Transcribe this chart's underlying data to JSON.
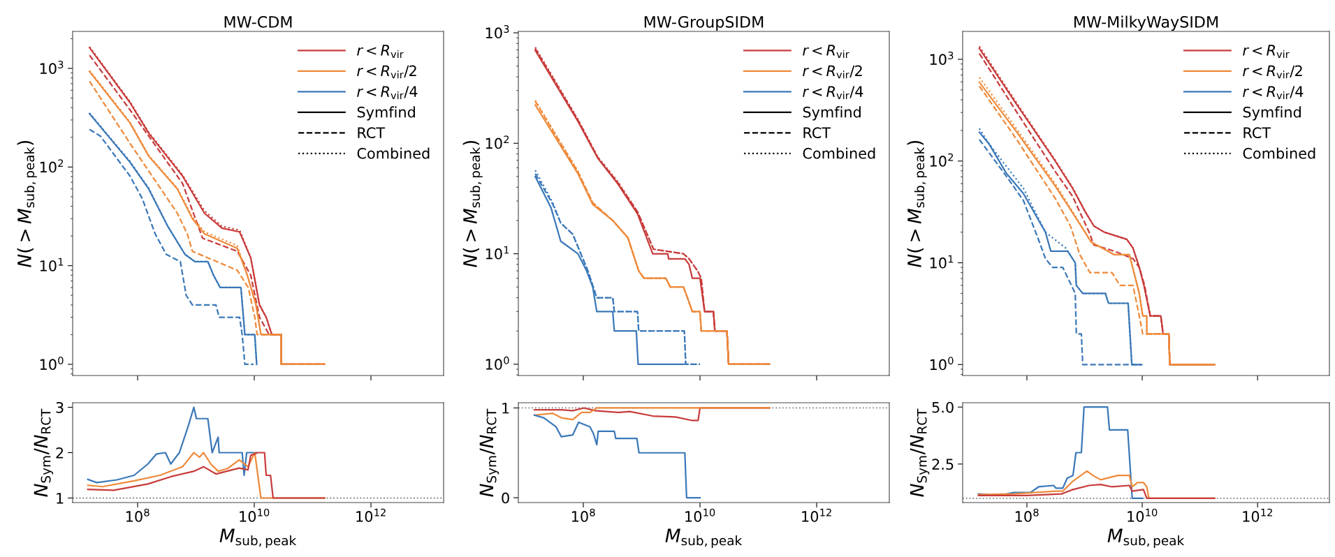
{
  "chart_data": [
    {
      "type": "line",
      "title": "MW-CDM",
      "ylabel": "N(>M$_{sub,peak}$)",
      "log": "xy",
      "legend": "top right",
      "tick_labels": "y",
      "xlim": [
        7700000.0,
        17600000000000.0
      ],
      "ylim": [
        0.77,
        2370
      ],
      "xticks": [
        {
          "value": 100000000.0,
          "label": null
        },
        {
          "value": 10000000000.0,
          "label": null
        },
        {
          "value": 1000000000000.0,
          "label": null
        }
      ],
      "yticks": [
        {
          "value": 1,
          "label": "10$^{0}$"
        },
        {
          "value": 10,
          "label": "10$^{1}$"
        },
        {
          "value": 100,
          "label": "10$^{2}$"
        },
        {
          "value": 1000,
          "label": "10$^{3}$"
        }
      ],
      "series": [
        {
          "name": "r<R$_{vir}$",
          "color": "#c83b3b",
          "line_style": "solid",
          "x": [
            15000000.0,
            74000000.0,
            155000000.0,
            590000000.0,
            1400000000.0,
            2800000000.0,
            5600000000.0,
            8700000000.0,
            12300000000.0,
            16000000000.0,
            20000000000.0,
            29000000000.0,
            29000000000.0,
            160000000000.0
          ],
          "values": [
            1620,
            450,
            220,
            81,
            34,
            24,
            22,
            12,
            4,
            3,
            2,
            2,
            1,
            1
          ]
        },
        {
          "color": "#c83b3b",
          "line_style": "dashed",
          "x": [
            15000000.0,
            74000000.0,
            590000000.0,
            1300000000.0,
            5100000000.0,
            8700000000.0,
            12300000000.0,
            18000000000.0,
            29000000000.0,
            29000000000.0,
            160000000000.0
          ],
          "values": [
            1360,
            380,
            68,
            19,
            14,
            8,
            3,
            2,
            2,
            1,
            1
          ]
        },
        {
          "color": "#c83b3b",
          "line_style": "dotted",
          "x": [
            15000000.0,
            74000000.0,
            155000000.0,
            590000000.0,
            1400000000.0,
            2800000000.0,
            5600000000.0,
            8700000000.0,
            12300000000.0,
            16000000000.0,
            20000000000.0,
            29000000000.0,
            29000000000.0,
            160000000000.0
          ],
          "values": [
            1650,
            460,
            225,
            83,
            36,
            25,
            23,
            12,
            4,
            3,
            2,
            2,
            1,
            1
          ]
        },
        {
          "name": "r<R$_{vir}$/2",
          "color": "#ee8a3a",
          "line_style": "solid",
          "x": [
            15000000.0,
            74000000.0,
            155000000.0,
            480000000.0,
            870000000.0,
            1400000000.0,
            5100000000.0,
            7600000000.0,
            10700000000.0,
            13000000000.0,
            29000000000.0,
            29000000000.0,
            160000000000.0
          ],
          "values": [
            930,
            280,
            129,
            60,
            30,
            21,
            15,
            8,
            4,
            2,
            2,
            1,
            1
          ]
        },
        {
          "color": "#ee8a3a",
          "line_style": "dashed",
          "x": [
            15000000.0,
            74000000.0,
            480000000.0,
            710000000.0,
            870000000.0,
            1600000000.0,
            5100000000.0,
            7900000000.0,
            10200000000.0,
            11200000000.0,
            29000000000.0,
            29000000000.0,
            160000000000.0
          ],
          "values": [
            740,
            174,
            34,
            21,
            14,
            12,
            9,
            6,
            3,
            2,
            2,
            1,
            1
          ]
        },
        {
          "color": "#ee8a3a",
          "line_style": "dotted",
          "x": [
            15000000.0,
            74000000.0,
            155000000.0,
            480000000.0,
            870000000.0,
            1400000000.0,
            5100000000.0,
            7600000000.0,
            10700000000.0,
            13000000000.0,
            29000000000.0,
            29000000000.0,
            160000000000.0
          ],
          "values": [
            950,
            285,
            131,
            61,
            31,
            22,
            16,
            8,
            4,
            2,
            2,
            1,
            1
          ]
        },
        {
          "name": "r<R$_{vir}$/4",
          "color": "#3a78b8",
          "line_style": "solid",
          "x": [
            15000000.0,
            74000000.0,
            155000000.0,
            330000000.0,
            650000000.0,
            960000000.0,
            1600000000.0,
            2000000000.0,
            2600000000.0,
            5900000000.0,
            6900000000.0,
            10200000000.0,
            11000000000.0
          ],
          "values": [
            347,
            112,
            60,
            25,
            13,
            11,
            11,
            8,
            6,
            6,
            2,
            2,
            1
          ]
        },
        {
          "color": "#3a78b8",
          "line_style": "dashed",
          "x": [
            15000000.0,
            23000000.0,
            74000000.0,
            120000000.0,
            200000000.0,
            310000000.0,
            540000000.0,
            680000000.0,
            870000000.0,
            2200000000.0,
            2500000000.0,
            5600000000.0,
            6200000000.0,
            6900000000.0,
            9700000000.0
          ],
          "values": [
            240,
            206,
            81,
            48,
            21,
            13,
            11,
            5,
            4,
            4,
            3,
            3,
            2,
            1,
            1
          ]
        },
        {
          "color": "#3a78b8",
          "line_style": "dotted",
          "x": [
            15000000.0,
            74000000.0,
            155000000.0,
            330000000.0,
            650000000.0,
            960000000.0,
            1600000000.0,
            2000000000.0,
            2600000000.0,
            5900000000.0,
            6900000000.0,
            10200000000.0,
            11000000000.0
          ],
          "values": [
            352,
            114,
            61,
            25,
            13,
            11,
            11,
            8,
            6,
            6,
            2,
            2,
            1
          ]
        },
        {
          "name": "Symfind",
          "color": "#000000",
          "line_style": "solid"
        },
        {
          "name": "RCT",
          "color": "#000000",
          "line_style": "dashed"
        },
        {
          "name": "Combined",
          "color": "#000000",
          "line_style": "dotted"
        }
      ]
    },
    {
      "type": "line",
      "title": "MW-GroupSIDM",
      "ylabel": "N(>M$_{sub,peak}$)",
      "log": "xy",
      "legend": "top right",
      "tick_labels": "y",
      "xlim": [
        7700000.0,
        17600000000000.0
      ],
      "ylim": [
        0.79,
        1030
      ],
      "xticks": [
        {
          "value": 100000000.0,
          "label": null
        },
        {
          "value": 10000000000.0,
          "label": null
        },
        {
          "value": 1000000000000.0,
          "label": null
        }
      ],
      "yticks": [
        {
          "value": 1,
          "label": "10$^{0}$"
        },
        {
          "value": 10,
          "label": "10$^{1}$"
        },
        {
          "value": 100,
          "label": "10$^{2}$"
        },
        {
          "value": 1000,
          "label": "10$^{3}$"
        }
      ],
      "series": [
        {
          "name": "r<R$_{vir}$",
          "color": "#c83b3b",
          "line_style": "solid",
          "x": [
            15000000.0,
            81000000.0,
            178000000.0,
            390000000.0,
            850000000.0,
            1550000000.0,
            2800000000.0,
            2900000000.0,
            5500000000.0,
            6500000000.0,
            7400000000.0,
            10000000000.0,
            12000000000.0,
            17000000000.0,
            18000000000.0,
            29000000000.0,
            31000000000.0,
            155000000000.0
          ],
          "values": [
            695,
            158,
            73,
            43,
            23,
            10,
            10,
            9,
            9,
            8,
            6,
            6,
            3,
            3,
            2,
            2,
            1,
            1
          ]
        },
        {
          "color": "#c83b3b",
          "line_style": "dashed",
          "x": [
            15000000.0,
            81000000.0,
            178000000.0,
            390000000.0,
            850000000.0,
            1600000000.0,
            5200000000.0,
            6500000000.0,
            9100000000.0,
            10500000000.0,
            12000000000.0,
            17000000000.0,
            18000000000.0,
            29000000000.0,
            31000000000.0,
            155000000000.0
          ],
          "values": [
            720,
            162,
            74,
            44,
            24,
            11,
            10,
            9,
            7,
            6,
            3,
            3,
            2,
            2,
            1,
            1
          ]
        },
        {
          "color": "#c83b3b",
          "line_style": "dotted",
          "x": [
            15000000.0,
            81000000.0,
            178000000.0,
            390000000.0,
            850000000.0,
            1600000000.0,
            5200000000.0,
            6500000000.0,
            9100000000.0,
            10500000000.0,
            12000000000.0,
            17000000000.0,
            18000000000.0,
            29000000000.0,
            31000000000.0,
            155000000000.0
          ],
          "values": [
            740,
            165,
            75,
            45,
            24,
            11,
            10,
            9,
            7,
            6,
            3,
            3,
            2,
            2,
            1,
            1
          ]
        },
        {
          "name": "r<R$_{vir}$/2",
          "color": "#ee8a3a",
          "line_style": "solid",
          "x": [
            15000000.0,
            81000000.0,
            145000000.0,
            320000000.0,
            580000000.0,
            890000000.0,
            1100000000.0,
            2600000000.0,
            3100000000.0,
            5200000000.0,
            6100000000.0,
            7400000000.0,
            10000000000.0,
            10500000000.0,
            29000000000.0,
            31000000000.0,
            155000000000.0
          ],
          "values": [
            222,
            53,
            28,
            20,
            14,
            7,
            6,
            6,
            5,
            5,
            4,
            3,
            3,
            2,
            2,
            1,
            1
          ]
        },
        {
          "color": "#ee8a3a",
          "line_style": "dashed",
          "x": [
            15000000.0,
            81000000.0,
            145000000.0,
            320000000.0,
            580000000.0,
            890000000.0,
            1100000000.0,
            2600000000.0,
            3100000000.0,
            5200000000.0,
            6100000000.0,
            7400000000.0,
            10000000000.0,
            10500000000.0,
            29000000000.0,
            31000000000.0,
            155000000000.0
          ],
          "values": [
            240,
            55,
            29,
            20,
            14,
            7,
            6,
            6,
            5,
            5,
            4,
            3,
            3,
            2,
            2,
            1,
            1
          ]
        },
        {
          "color": "#ee8a3a",
          "line_style": "dotted",
          "x": [
            15000000.0,
            81000000.0,
            145000000.0,
            320000000.0,
            580000000.0,
            890000000.0,
            1100000000.0,
            2600000000.0,
            3100000000.0,
            5200000000.0,
            6100000000.0,
            7400000000.0,
            10000000000.0,
            10500000000.0,
            29000000000.0,
            31000000000.0,
            155000000000.0
          ],
          "values": [
            245,
            56,
            29,
            20,
            14,
            7,
            6,
            6,
            5,
            5,
            4,
            3,
            3,
            2,
            2,
            1,
            1
          ]
        },
        {
          "name": "r<R$_{vir}$/4",
          "color": "#3a78b8",
          "line_style": "solid",
          "x": [
            15000000.0,
            28000000.0,
            41000000.0,
            81000000.0,
            114000000.0,
            145000000.0,
            170000000.0,
            320000000.0,
            340000000.0,
            810000000.0,
            870000000.0,
            5400000000.0
          ],
          "values": [
            50,
            26,
            13,
            10,
            7,
            5,
            3,
            3,
            2,
            2,
            1,
            1
          ]
        },
        {
          "color": "#3a78b8",
          "line_style": "dashed",
          "x": [
            15000000.0,
            30000000.0,
            41000000.0,
            66000000.0,
            120000000.0,
            170000000.0,
            320000000.0,
            340000000.0,
            850000000.0,
            890000000.0,
            5400000000.0,
            5700000000.0,
            10000000000.0
          ],
          "values": [
            53,
            28,
            19,
            15,
            7,
            4,
            4,
            3,
            3,
            2,
            2,
            1,
            1
          ]
        },
        {
          "color": "#3a78b8",
          "line_style": "dotted",
          "x": [
            15000000.0,
            30000000.0,
            41000000.0,
            66000000.0,
            120000000.0,
            170000000.0,
            320000000.0,
            340000000.0,
            850000000.0,
            890000000.0,
            5400000000.0,
            5700000000.0,
            10000000000.0
          ],
          "values": [
            57,
            29,
            19,
            15,
            7,
            4,
            4,
            3,
            3,
            2,
            2,
            1,
            1
          ]
        },
        {
          "name": "Symfind",
          "color": "#000000",
          "line_style": "solid"
        },
        {
          "name": "RCT",
          "color": "#000000",
          "line_style": "dashed"
        },
        {
          "name": "Combined",
          "color": "#000000",
          "line_style": "dotted"
        }
      ]
    },
    {
      "type": "line",
      "title": "MW-MilkyWaySIDM",
      "ylabel": "N(>M$_{sub,peak}$)",
      "log": "xy",
      "legend": "top right",
      "tick_labels": "y",
      "xlim": [
        7700000.0,
        17600000000000.0
      ],
      "ylim": [
        0.78,
        1880
      ],
      "xticks": [
        {
          "value": 100000000.0,
          "label": null
        },
        {
          "value": 10000000000.0,
          "label": null
        },
        {
          "value": 1000000000000.0,
          "label": null
        }
      ],
      "yticks": [
        {
          "value": 1,
          "label": "10$^{0}$"
        },
        {
          "value": 10,
          "label": "10$^{1}$"
        },
        {
          "value": 100,
          "label": "10$^{2}$"
        },
        {
          "value": 1000,
          "label": "10$^{3}$"
        }
      ],
      "series": [
        {
          "name": "r<R$_{vir}$",
          "color": "#c83b3b",
          "line_style": "solid",
          "x": [
            15000000.0,
            65000000.0,
            310000000.0,
            620000000.0,
            1020000000.0,
            1450000000.0,
            2200000000.0,
            5400000000.0,
            6900000000.0,
            8900000000.0,
            10700000000.0,
            13800000000.0,
            21000000000.0,
            23000000000.0,
            29000000000.0,
            30000000000.0,
            180000000000.0
          ],
          "values": [
            1280,
            367,
            100,
            54,
            32,
            23,
            20,
            17,
            14,
            9,
            6,
            3,
            3,
            2,
            2,
            1,
            1
          ]
        },
        {
          "color": "#c83b3b",
          "line_style": "dashed",
          "x": [
            15000000.0,
            65000000.0,
            310000000.0,
            620000000.0,
            1200000000.0,
            1450000000.0,
            3300000000.0,
            6900000000.0,
            8900000000.0,
            11000000000.0,
            13800000000.0,
            21000000000.0,
            23000000000.0,
            29000000000.0,
            30000000000.0,
            180000000000.0
          ],
          "values": [
            1140,
            310,
            79,
            45,
            20,
            15,
            13,
            11,
            9,
            6,
            3,
            3,
            2,
            2,
            1,
            1
          ]
        },
        {
          "color": "#c83b3b",
          "line_style": "dotted",
          "x": [
            15000000.0,
            65000000.0,
            310000000.0,
            620000000.0,
            1020000000.0,
            1450000000.0,
            2200000000.0,
            5400000000.0,
            6900000000.0,
            8900000000.0,
            10700000000.0,
            13800000000.0,
            21000000000.0,
            23000000000.0,
            29000000000.0,
            30000000000.0,
            180000000000.0
          ],
          "values": [
            1340,
            380,
            102,
            55,
            32,
            23,
            20,
            17,
            14,
            9,
            6,
            3,
            3,
            2,
            2,
            1,
            1
          ]
        },
        {
          "name": "r<R$_{vir}$/2",
          "color": "#ee8a3a",
          "line_style": "solid",
          "x": [
            15000000.0,
            65000000.0,
            310000000.0,
            620000000.0,
            1020000000.0,
            1300000000.0,
            3300000000.0,
            6000000000.0,
            7200000000.0,
            8900000000.0,
            10200000000.0,
            12000000000.0,
            12000000000.0,
            29000000000.0,
            30000000000.0,
            180000000000.0
          ],
          "values": [
            595,
            197,
            57,
            31,
            20,
            16,
            12,
            12,
            8,
            5,
            3,
            3,
            2,
            2,
            1,
            1
          ]
        },
        {
          "color": "#ee8a3a",
          "line_style": "dashed",
          "x": [
            15000000.0,
            65000000.0,
            310000000.0,
            570000000.0,
            830000000.0,
            1240000000.0,
            3000000000.0,
            4100000000.0,
            6900000000.0,
            8900000000.0,
            10200000000.0,
            29000000000.0,
            30000000000.0,
            180000000000.0
          ],
          "values": [
            546,
            166,
            43,
            23,
            12,
            8,
            8,
            6,
            6,
            3,
            2,
            2,
            1,
            1
          ]
        },
        {
          "color": "#ee8a3a",
          "line_style": "dotted",
          "x": [
            15000000.0,
            65000000.0,
            310000000.0,
            620000000.0,
            1020000000.0,
            1300000000.0,
            3300000000.0,
            6000000000.0,
            7200000000.0,
            8900000000.0,
            10200000000.0,
            12000000000.0,
            12000000000.0,
            29000000000.0,
            30000000000.0,
            180000000000.0
          ],
          "values": [
            665,
            210,
            60,
            32,
            20,
            16,
            12,
            12,
            8,
            5,
            3,
            3,
            2,
            2,
            1,
            1
          ]
        },
        {
          "name": "r<R$_{vir}$/4",
          "color": "#3a78b8",
          "line_style": "solid",
          "x": [
            15000000.0,
            22000000.0,
            44000000.0,
            87000000.0,
            210000000.0,
            260000000.0,
            510000000.0,
            690000000.0,
            720000000.0,
            930000000.0,
            2300000000.0,
            2600000000.0,
            5700000000.0,
            6600000000.0,
            9800000000.0
          ],
          "values": [
            192,
            148,
            76,
            48,
            20,
            13,
            13,
            10,
            6,
            5,
            5,
            4,
            4,
            1,
            1
          ]
        },
        {
          "color": "#3a78b8",
          "line_style": "dashed",
          "x": [
            15000000.0,
            44000000.0,
            87000000.0,
            165000000.0,
            210000000.0,
            280000000.0,
            420000000.0,
            690000000.0,
            720000000.0,
            880000000.0,
            930000000.0,
            9800000000.0
          ],
          "values": [
            163,
            71,
            41,
            16,
            11,
            9,
            9,
            5,
            2,
            2,
            1,
            1
          ]
        },
        {
          "color": "#3a78b8",
          "line_style": "dotted",
          "x": [
            15000000.0,
            22000000.0,
            87000000.0,
            210000000.0,
            470000000.0,
            510000000.0,
            690000000.0,
            720000000.0,
            930000000.0,
            2300000000.0,
            2600000000.0,
            5700000000.0,
            6600000000.0,
            9800000000.0
          ],
          "values": [
            209,
            148,
            54,
            20,
            14,
            13,
            10,
            6,
            5,
            5,
            4,
            4,
            1,
            1
          ]
        },
        {
          "name": "Symfind",
          "color": "#000000",
          "line_style": "solid"
        },
        {
          "name": "RCT",
          "color": "#000000",
          "line_style": "dashed"
        },
        {
          "name": "Combined",
          "color": "#000000",
          "line_style": "dotted"
        }
      ]
    },
    {
      "type": "line",
      "xlabel": "M$_{sub,peak}$",
      "ylabel": "N$_{Sym}$/N$_{RCT}$",
      "log": "x",
      "xlim": [
        7700000.0,
        17600000000000.0
      ],
      "ylim": [
        0.9,
        3.1
      ],
      "xticks": [
        {
          "value": 100000000.0,
          "label": "10$^{8}$"
        },
        {
          "value": 10000000000.0,
          "label": "10$^{10}$"
        },
        {
          "value": 1000000000000.0,
          "label": "10$^{12}$"
        }
      ],
      "yticks": [
        1,
        2,
        3
      ],
      "ref_lines": [
        {
          "axis": "y",
          "value": 1,
          "color": "#808080",
          "line_style": "dotted"
        }
      ],
      "series": [
        {
          "color": "#3a78b8",
          "line_style": "solid",
          "x": [
            14000000.0,
            20000000.0,
            44000000.0,
            87000000.0,
            150000000.0,
            210000000.0,
            300000000.0,
            370000000.0,
            520000000.0,
            740000000.0,
            920000000.0,
            1020000000.0,
            1600000000.0,
            1900000000.0,
            2400000000.0,
            2500000000.0,
            6200000000.0,
            6700000000.0,
            7400000000.0,
            11000000000.0
          ],
          "values": [
            1.41,
            1.34,
            1.4,
            1.5,
            1.75,
            1.97,
            2.0,
            1.75,
            2.0,
            2.59,
            3.0,
            2.75,
            2.75,
            2.0,
            2.34,
            2.0,
            2.0,
            1.5,
            2.0,
            2.0
          ]
        },
        {
          "color": "#ee8a3a",
          "line_style": "solid",
          "x": [
            14000000.0,
            25000000.0,
            87000000.0,
            240000000.0,
            590000000.0,
            920000000.0,
            1150000000.0,
            1350000000.0,
            1800000000.0,
            2400000000.0,
            3500000000.0,
            5500000000.0,
            7800000000.0,
            10200000000.0,
            13000000000.0,
            160000000000.0
          ],
          "values": [
            1.28,
            1.25,
            1.38,
            1.5,
            1.69,
            2.0,
            1.9,
            2.0,
            1.75,
            1.59,
            1.65,
            1.84,
            1.69,
            2.0,
            1.0,
            1.0
          ]
        },
        {
          "color": "#c83b3b",
          "line_style": "solid",
          "x": [
            14000000.0,
            39000000.0,
            150000000.0,
            370000000.0,
            920000000.0,
            1350000000.0,
            2200000000.0,
            5500000000.0,
            7800000000.0,
            8700000000.0,
            11500000000.0,
            15000000000.0,
            16000000000.0,
            19000000000.0,
            21000000000.0,
            160000000000.0
          ],
          "values": [
            1.19,
            1.17,
            1.31,
            1.47,
            1.59,
            1.69,
            1.53,
            1.66,
            1.62,
            1.94,
            2.0,
            2.0,
            1.5,
            1.5,
            1.0,
            1.0
          ]
        }
      ]
    },
    {
      "type": "line",
      "xlabel": "M$_{sub,peak}$",
      "ylabel": "N$_{Sym}$/N$_{RCT}$",
      "log": "x",
      "xlim": [
        7700000.0,
        17600000000000.0
      ],
      "ylim": [
        -0.054,
        1.058
      ],
      "xticks": [
        {
          "value": 100000000.0,
          "label": "10$^{8}$"
        },
        {
          "value": 10000000000.0,
          "label": "10$^{10}$"
        },
        {
          "value": 1000000000000.0,
          "label": "10$^{12}$"
        }
      ],
      "yticks": [
        0,
        1
      ],
      "ref_lines": [
        {
          "axis": "y",
          "value": 1,
          "color": "#808080",
          "line_style": "dotted"
        }
      ],
      "series": [
        {
          "color": "#c83b3b",
          "line_style": "solid",
          "x": [
            14500000.0,
            42000000.0,
            66000000.0,
            103000000.0,
            160000000.0,
            400000000.0,
            630000000.0,
            1550000000.0,
            3800000000.0,
            7400000000.0,
            9300000000.0,
            10000000000.0,
            155000000000.0
          ],
          "values": [
            0.98,
            0.98,
            0.97,
            1.0,
            0.97,
            0.95,
            0.96,
            0.91,
            0.9,
            0.86,
            0.86,
            1.0,
            1.0
          ]
        },
        {
          "color": "#ee8a3a",
          "line_style": "solid",
          "x": [
            14500000.0,
            30000000.0,
            42000000.0,
            66000000.0,
            93000000.0,
            130000000.0,
            170000000.0,
            155000000000.0
          ],
          "values": [
            0.92,
            0.94,
            0.89,
            0.87,
            0.95,
            0.95,
            1.0,
            1.0
          ]
        },
        {
          "color": "#3a78b8",
          "line_style": "solid",
          "x": [
            14500000.0,
            21000000.0,
            34000000.0,
            42000000.0,
            66000000.0,
            83000000.0,
            130000000.0,
            150000000.0,
            170000000.0,
            180000000.0,
            340000000.0,
            360000000.0,
            830000000.0,
            900000000.0,
            5500000000.0,
            5900000000.0,
            10000000000.0
          ],
          "values": [
            0.92,
            0.89,
            0.79,
            0.68,
            0.7,
            0.84,
            0.79,
            0.71,
            0.59,
            0.74,
            0.74,
            0.66,
            0.66,
            0.5,
            0.5,
            0.0,
            0.0
          ]
        }
      ]
    },
    {
      "type": "line",
      "xlabel": "M$_{sub,peak}$",
      "ylabel": "N$_{Sym}$/N$_{RCT}$",
      "log": "x",
      "xlim": [
        7700000.0,
        17600000000000.0
      ],
      "ylim": [
        0.81,
        5.19
      ],
      "xticks": [
        {
          "value": 100000000.0,
          "label": "10$^{8}$"
        },
        {
          "value": 10000000000.0,
          "label": "10$^{10}$"
        },
        {
          "value": 1000000000000.0,
          "label": "10$^{12}$"
        }
      ],
      "yticks": [
        2.5,
        {
          "value": 5,
          "label": "5.0"
        }
      ],
      "ref_lines": [
        {
          "axis": "y",
          "value": 1,
          "color": "#808080",
          "line_style": "dotted"
        }
      ],
      "series": [
        {
          "color": "#3a78b8",
          "line_style": "solid",
          "x": [
            14500000.0,
            34000000.0,
            59000000.0,
            115000000.0,
            160000000.0,
            290000000.0,
            320000000.0,
            420000000.0,
            500000000.0,
            630000000.0,
            710000000.0,
            880000000.0,
            980000000.0,
            2500000000.0,
            2700000000.0,
            5600000000.0,
            6700000000.0,
            10000000000.0
          ],
          "values": [
            1.19,
            1.12,
            1.25,
            1.25,
            1.5,
            1.56,
            1.44,
            1.44,
            1.88,
            2.0,
            3.0,
            3.0,
            5.0,
            5.0,
            4.0,
            4.0,
            1.0,
            1.0
          ]
        },
        {
          "color": "#ee8a3a",
          "line_style": "solid",
          "x": [
            14500000.0,
            59000000.0,
            320000000.0,
            420000000.0,
            630000000.0,
            1100000000.0,
            1400000000.0,
            1900000000.0,
            3000000000.0,
            3800000000.0,
            6000000000.0,
            6700000000.0,
            8300000000.0,
            10500000000.0,
            12000000000.0,
            13000000000.0,
            180000000000.0
          ],
          "values": [
            1.16,
            1.19,
            1.31,
            1.31,
            1.75,
            2.19,
            2.0,
            1.81,
            1.94,
            2.0,
            2.0,
            1.5,
            1.69,
            1.69,
            1.5,
            1.0,
            1.0
          ]
        },
        {
          "color": "#c83b3b",
          "line_style": "solid",
          "x": [
            14500000.0,
            100000000.0,
            400000000.0,
            630000000.0,
            1200000000.0,
            1900000000.0,
            3000000000.0,
            6000000000.0,
            6700000000.0,
            10500000000.0,
            12000000000.0,
            180000000000.0
          ],
          "values": [
            1.12,
            1.12,
            1.19,
            1.38,
            1.56,
            1.6,
            1.5,
            1.56,
            1.31,
            1.38,
            1.0,
            1.0
          ]
        }
      ]
    }
  ]
}
